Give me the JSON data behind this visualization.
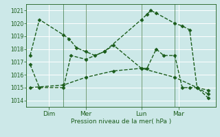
{
  "bg_color": "#cce8e8",
  "grid_color": "#ffffff",
  "line_color": "#1a5c1a",
  "marker": "D",
  "markersize": 2.5,
  "linewidth": 1.0,
  "linestyle": "--",
  "xlabel": "Pression niveau de la mer( hPa )",
  "ylim": [
    1013.5,
    1021.5
  ],
  "yticks": [
    1014,
    1015,
    1016,
    1017,
    1018,
    1019,
    1020,
    1021
  ],
  "xtick_labels": [
    "Dim",
    "Mer",
    "Lun",
    "Mar"
  ],
  "xtick_positions": [
    10,
    30,
    60,
    80
  ],
  "vlines": [
    18,
    30,
    60,
    78
  ],
  "series": [
    {
      "x": [
        0,
        5,
        18,
        21,
        25,
        30,
        35,
        40,
        60,
        63,
        65,
        68,
        78,
        82,
        86,
        90,
        96
      ],
      "y": [
        1017.5,
        1020.3,
        1019.1,
        1018.8,
        1018.1,
        1017.8,
        1017.5,
        1017.8,
        1020.3,
        1020.7,
        1021.0,
        1020.8,
        1020.0,
        1019.8,
        1019.5,
        1015.0,
        1014.8
      ]
    },
    {
      "x": [
        0,
        5,
        18,
        22,
        30,
        40,
        45,
        60,
        63,
        68,
        72,
        78,
        82,
        86,
        90,
        96
      ],
      "y": [
        1016.8,
        1015.0,
        1015.0,
        1017.5,
        1017.2,
        1017.8,
        1018.3,
        1016.5,
        1016.5,
        1018.0,
        1017.5,
        1017.5,
        1015.0,
        1015.0,
        1015.0,
        1014.2
      ]
    },
    {
      "x": [
        0,
        18,
        30,
        45,
        60,
        78,
        90,
        96
      ],
      "y": [
        1015.0,
        1015.2,
        1015.8,
        1016.3,
        1016.5,
        1015.8,
        1015.0,
        1014.5
      ]
    }
  ]
}
